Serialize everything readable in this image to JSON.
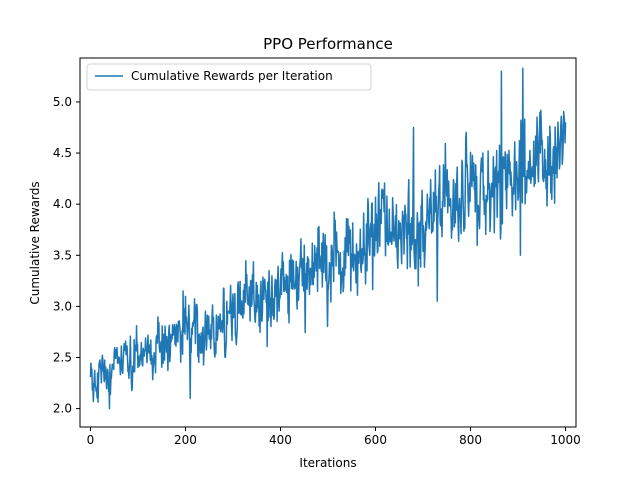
{
  "chart_data": {
    "type": "line",
    "title": "PPO Performance",
    "xlabel": "Iterations",
    "ylabel": "Cumulative Rewards",
    "xlim": [
      -22,
      1022
    ],
    "ylim": [
      1.82,
      5.43
    ],
    "x_ticks": [
      0,
      200,
      400,
      600,
      800,
      1000
    ],
    "y_ticks": [
      2.0,
      2.5,
      3.0,
      3.5,
      4.0,
      4.5,
      5.0
    ],
    "x_tick_labels": [
      "0",
      "200",
      "400",
      "600",
      "800",
      "1000"
    ],
    "y_tick_labels": [
      "2.0",
      "2.5",
      "3.0",
      "3.5",
      "4.0",
      "4.5",
      "5.0"
    ],
    "grid": false,
    "legend": {
      "placement": "top-left",
      "entries": [
        "Cumulative Rewards per Iteration"
      ]
    },
    "series": [
      {
        "name": "Cumulative Rewards per Iteration",
        "color": "#1f77b4",
        "trend": {
          "start": [
            0,
            2.25
          ],
          "end": [
            1000,
            4.55
          ]
        },
        "envelope": {
          "start": [
            2.0,
            2.55
          ],
          "end": [
            3.6,
            5.3
          ]
        },
        "notable_points": [
          {
            "x": 40,
            "y": 2.0
          },
          {
            "x": 195,
            "y": 3.15
          },
          {
            "x": 210,
            "y": 2.1
          },
          {
            "x": 680,
            "y": 4.75
          },
          {
            "x": 690,
            "y": 3.2
          },
          {
            "x": 730,
            "y": 3.05
          },
          {
            "x": 865,
            "y": 5.3
          },
          {
            "x": 910,
            "y": 5.33
          },
          {
            "x": 905,
            "y": 3.5
          },
          {
            "x": 1000,
            "y": 4.8
          }
        ]
      }
    ]
  }
}
